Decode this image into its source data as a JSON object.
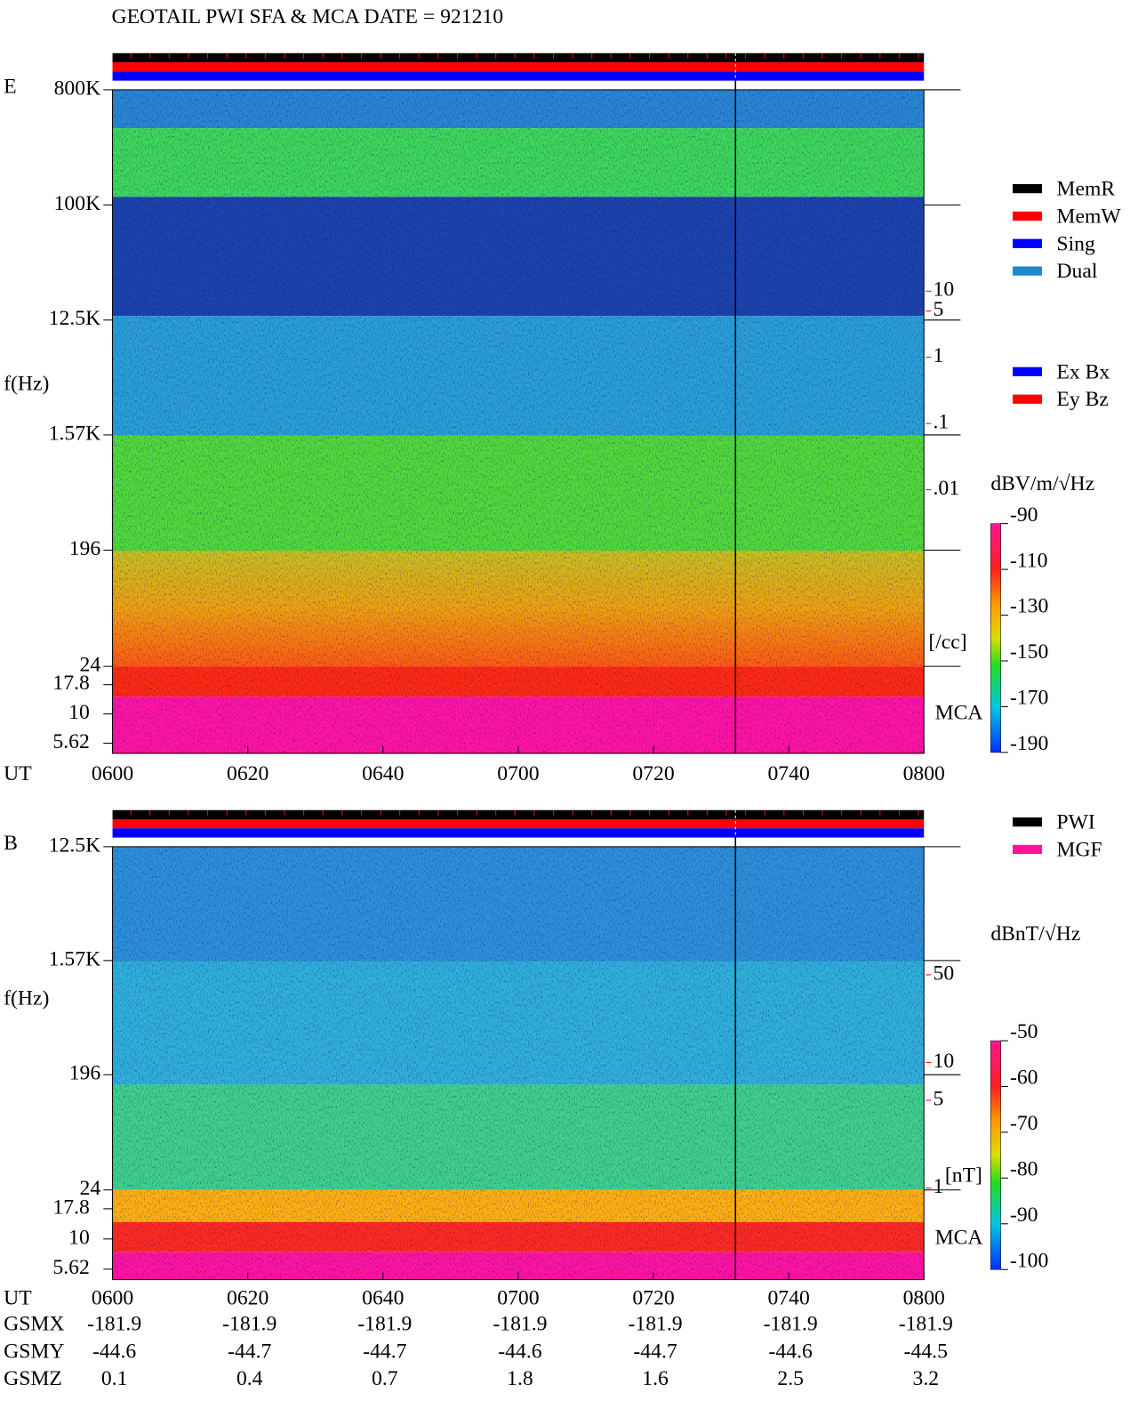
{
  "title": "GEOTAIL  PWI SFA & MCA   DATE = 921210",
  "status_legend": [
    {
      "name": "MemR",
      "color": "#000000"
    },
    {
      "name": "MemW",
      "color": "#ff0000"
    },
    {
      "name": "Sing",
      "color": "#0000ff"
    },
    {
      "name": "Dual",
      "color": "#1e88c8"
    }
  ],
  "chart_data": [
    {
      "type": "spectrogram",
      "panel_label": "E",
      "ylabel": "f(Hz)",
      "xlabel": "UT",
      "log_y": true,
      "ylim": [
        24,
        800000
      ],
      "yticks": [
        {
          "value": 800000,
          "label": "800K"
        },
        {
          "value": 100000,
          "label": "100K"
        },
        {
          "value": 12500,
          "label": "12.5K"
        },
        {
          "value": 1570,
          "label": "1.57K"
        },
        196,
        24
      ],
      "mca_label": "MCA",
      "mca_ylim": [
        4.6,
        25.5
      ],
      "mca_yticks": [
        17.8,
        10,
        5.62
      ],
      "xlim": [
        "0600",
        "0800"
      ],
      "xticks": [
        "0600",
        "0620",
        "0640",
        "0700",
        "0720",
        "0740",
        "0800"
      ],
      "colorbar": {
        "label": "dBV/m/√Hz",
        "lim": [
          -190,
          -90
        ],
        "ticks": [
          -90,
          -110,
          -130,
          -150,
          -170,
          -190
        ]
      },
      "right_scale": {
        "label": "[/cc]",
        "color": "#ff0000",
        "log": true,
        "lim": [
          0.01,
          10
        ],
        "ticks": [
          10,
          5,
          1,
          {
            "value": 0.1,
            "label": ".1"
          },
          {
            "value": 0.01,
            "label": ".01"
          }
        ]
      },
      "legend": [
        {
          "name": "Ex Bx",
          "color": "#0000ff"
        },
        {
          "name": "Ey Bz",
          "color": "#ff0000"
        }
      ]
    },
    {
      "type": "spectrogram",
      "panel_label": "B",
      "ylabel": "f(Hz)",
      "xlabel": "UT",
      "log_y": true,
      "ylim": [
        24,
        12500
      ],
      "yticks": [
        {
          "value": 12500,
          "label": "12.5K"
        },
        {
          "value": 1570,
          "label": "1.57K"
        },
        196,
        24
      ],
      "mca_label": "MCA",
      "mca_ylim": [
        4.6,
        25.5
      ],
      "mca_yticks": [
        17.8,
        10,
        5.62
      ],
      "xlim": [
        "0600",
        "0800"
      ],
      "xticks": [
        "0600",
        "0620",
        "0640",
        "0700",
        "0720",
        "0740",
        "0800"
      ],
      "colorbar": {
        "label": "dBnT/√Hz",
        "lim": [
          -100,
          -50
        ],
        "ticks": [
          -50,
          -60,
          -70,
          -80,
          -90,
          -100
        ]
      },
      "right_scale": {
        "label": "[nT]",
        "color": "#ff0000",
        "log": true,
        "lim": [
          1,
          50
        ],
        "ticks": [
          50,
          10,
          5,
          1
        ]
      },
      "legend": [
        {
          "name": "PWI",
          "color": "#000000"
        },
        {
          "name": "MGF",
          "color": "#ff1493"
        }
      ]
    }
  ],
  "orbit": {
    "rows": [
      {
        "label": "GSMX",
        "values": [
          -181.9,
          -181.9,
          -181.9,
          -181.9,
          -181.9,
          -181.9,
          -181.9
        ]
      },
      {
        "label": "GSMY",
        "values": [
          -44.6,
          -44.7,
          -44.7,
          -44.6,
          -44.7,
          -44.6,
          -44.5
        ]
      },
      {
        "label": "GSMZ",
        "values": [
          0.1,
          0.4,
          0.7,
          1.8,
          1.6,
          2.5,
          3.2
        ]
      }
    ]
  }
}
